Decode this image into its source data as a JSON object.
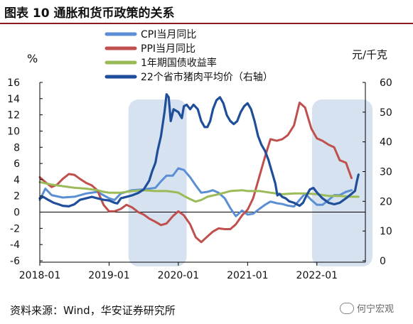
{
  "title": "图表 10  通胀和货币政策的关系",
  "source": "资料来源：Wind，华安证券研究所",
  "watermark": "何宁宏观",
  "chart_data": {
    "type": "line",
    "left_unit": "%",
    "right_unit": "元/千克",
    "left_ylim": [
      -6,
      16
    ],
    "left_ticks": [
      -6,
      -4,
      -2,
      0,
      2,
      4,
      6,
      8,
      10,
      12,
      14,
      16
    ],
    "right_ylim": [
      0,
      60
    ],
    "right_ticks": [
      0,
      10,
      20,
      30,
      40,
      50,
      60
    ],
    "xlim": [
      2018.0,
      2022.7
    ],
    "x_tick_labels": [
      "2018-01",
      "2019-01",
      "2020-01",
      "2021-01",
      "2022-01"
    ],
    "x_tick_values": [
      2018.0,
      2019.0,
      2020.0,
      2021.0,
      2022.0
    ],
    "shaded_ranges": [
      [
        2019.28,
        2020.12
      ],
      [
        2021.93,
        2022.96
      ]
    ],
    "series": [
      {
        "name": "CPI当月同比",
        "color": "#5b8fd4",
        "axis": "left",
        "points": [
          [
            2018.0,
            1.5
          ],
          [
            2018.08,
            2.9
          ],
          [
            2018.17,
            2.1
          ],
          [
            2018.33,
            1.8
          ],
          [
            2018.5,
            1.9
          ],
          [
            2018.67,
            2.3
          ],
          [
            2018.83,
            2.5
          ],
          [
            2019.0,
            1.7
          ],
          [
            2019.08,
            1.5
          ],
          [
            2019.17,
            2.3
          ],
          [
            2019.33,
            2.7
          ],
          [
            2019.5,
            2.8
          ],
          [
            2019.67,
            3.0
          ],
          [
            2019.75,
            3.8
          ],
          [
            2019.83,
            4.5
          ],
          [
            2019.92,
            4.5
          ],
          [
            2020.0,
            5.4
          ],
          [
            2020.08,
            5.2
          ],
          [
            2020.17,
            4.3
          ],
          [
            2020.25,
            3.3
          ],
          [
            2020.33,
            2.4
          ],
          [
            2020.42,
            2.5
          ],
          [
            2020.5,
            2.7
          ],
          [
            2020.58,
            2.4
          ],
          [
            2020.67,
            1.7
          ],
          [
            2020.75,
            0.5
          ],
          [
            2020.83,
            -0.5
          ],
          [
            2020.92,
            0.2
          ],
          [
            2021.0,
            -0.3
          ],
          [
            2021.08,
            -0.2
          ],
          [
            2021.17,
            0.4
          ],
          [
            2021.25,
            0.9
          ],
          [
            2021.33,
            1.3
          ],
          [
            2021.42,
            1.1
          ],
          [
            2021.5,
            1.0
          ],
          [
            2021.58,
            0.8
          ],
          [
            2021.67,
            0.7
          ],
          [
            2021.75,
            1.5
          ],
          [
            2021.83,
            2.3
          ],
          [
            2021.92,
            1.5
          ],
          [
            2022.0,
            0.9
          ],
          [
            2022.08,
            0.9
          ],
          [
            2022.17,
            1.5
          ],
          [
            2022.25,
            2.1
          ],
          [
            2022.33,
            2.1
          ],
          [
            2022.42,
            2.5
          ],
          [
            2022.5,
            2.7
          ]
        ]
      },
      {
        "name": "PPI当月同比",
        "color": "#c0504d",
        "axis": "left",
        "points": [
          [
            2018.0,
            4.3
          ],
          [
            2018.08,
            3.7
          ],
          [
            2018.17,
            3.1
          ],
          [
            2018.25,
            3.4
          ],
          [
            2018.33,
            4.1
          ],
          [
            2018.42,
            4.7
          ],
          [
            2018.5,
            4.6
          ],
          [
            2018.58,
            4.1
          ],
          [
            2018.67,
            3.6
          ],
          [
            2018.75,
            3.3
          ],
          [
            2018.83,
            2.7
          ],
          [
            2018.92,
            0.9
          ],
          [
            2019.0,
            0.1
          ],
          [
            2019.08,
            0.1
          ],
          [
            2019.17,
            0.4
          ],
          [
            2019.25,
            0.9
          ],
          [
            2019.33,
            0.6
          ],
          [
            2019.42,
            0.0
          ],
          [
            2019.5,
            -0.3
          ],
          [
            2019.58,
            -0.8
          ],
          [
            2019.67,
            -1.2
          ],
          [
            2019.75,
            -1.6
          ],
          [
            2019.83,
            -1.4
          ],
          [
            2019.92,
            -0.5
          ],
          [
            2020.0,
            0.1
          ],
          [
            2020.08,
            -0.4
          ],
          [
            2020.17,
            -1.5
          ],
          [
            2020.25,
            -3.1
          ],
          [
            2020.33,
            -3.7
          ],
          [
            2020.42,
            -3.0
          ],
          [
            2020.5,
            -2.4
          ],
          [
            2020.58,
            -2.0
          ],
          [
            2020.67,
            -2.1
          ],
          [
            2020.75,
            -2.1
          ],
          [
            2020.83,
            -1.5
          ],
          [
            2020.92,
            -0.4
          ],
          [
            2021.0,
            0.3
          ],
          [
            2021.08,
            1.7
          ],
          [
            2021.17,
            4.4
          ],
          [
            2021.25,
            6.8
          ],
          [
            2021.33,
            9.0
          ],
          [
            2021.42,
            8.8
          ],
          [
            2021.5,
            9.0
          ],
          [
            2021.58,
            9.5
          ],
          [
            2021.67,
            10.7
          ],
          [
            2021.75,
            13.5
          ],
          [
            2021.83,
            12.9
          ],
          [
            2021.92,
            10.3
          ],
          [
            2022.0,
            9.1
          ],
          [
            2022.08,
            8.8
          ],
          [
            2022.17,
            8.3
          ],
          [
            2022.25,
            8.0
          ],
          [
            2022.33,
            6.4
          ],
          [
            2022.42,
            6.1
          ],
          [
            2022.5,
            4.2
          ]
        ]
      },
      {
        "name": "1年期国债收益率",
        "color": "#9bbb59",
        "axis": "left",
        "points": [
          [
            2018.0,
            3.7
          ],
          [
            2018.17,
            3.4
          ],
          [
            2018.33,
            3.2
          ],
          [
            2018.5,
            3.0
          ],
          [
            2018.67,
            2.9
          ],
          [
            2018.83,
            2.7
          ],
          [
            2018.92,
            2.5
          ],
          [
            2019.0,
            2.4
          ],
          [
            2019.17,
            2.4
          ],
          [
            2019.33,
            2.6
          ],
          [
            2019.5,
            2.7
          ],
          [
            2019.67,
            2.6
          ],
          [
            2019.83,
            2.6
          ],
          [
            2019.92,
            2.5
          ],
          [
            2020.0,
            2.4
          ],
          [
            2020.08,
            2.0
          ],
          [
            2020.17,
            1.6
          ],
          [
            2020.25,
            1.3
          ],
          [
            2020.33,
            1.5
          ],
          [
            2020.42,
            1.9
          ],
          [
            2020.58,
            2.2
          ],
          [
            2020.75,
            2.6
          ],
          [
            2020.92,
            2.7
          ],
          [
            2021.0,
            2.6
          ],
          [
            2021.17,
            2.6
          ],
          [
            2021.33,
            2.4
          ],
          [
            2021.5,
            2.2
          ],
          [
            2021.67,
            2.3
          ],
          [
            2021.83,
            2.3
          ],
          [
            2022.0,
            2.2
          ],
          [
            2022.17,
            2.0
          ],
          [
            2022.33,
            2.0
          ],
          [
            2022.5,
            1.9
          ],
          [
            2022.6,
            1.9
          ]
        ]
      },
      {
        "name": "22个省市猪肉平均价（右轴）",
        "color": "#1f4e9a",
        "axis": "right",
        "points": [
          [
            2018.0,
            21
          ],
          [
            2018.05,
            21.5
          ],
          [
            2018.12,
            20.5
          ],
          [
            2018.2,
            19.5
          ],
          [
            2018.27,
            19
          ],
          [
            2018.33,
            18.5
          ],
          [
            2018.42,
            18.3
          ],
          [
            2018.5,
            19
          ],
          [
            2018.58,
            20.5
          ],
          [
            2018.67,
            21
          ],
          [
            2018.75,
            21.5
          ],
          [
            2018.83,
            21
          ],
          [
            2018.92,
            20.5
          ],
          [
            2019.0,
            20.3
          ],
          [
            2019.08,
            19.5
          ],
          [
            2019.12,
            19.3
          ],
          [
            2019.17,
            21
          ],
          [
            2019.25,
            21.5
          ],
          [
            2019.33,
            22
          ],
          [
            2019.42,
            22.8
          ],
          [
            2019.5,
            24
          ],
          [
            2019.58,
            27
          ],
          [
            2019.62,
            30
          ],
          [
            2019.67,
            33
          ],
          [
            2019.7,
            37
          ],
          [
            2019.75,
            42
          ],
          [
            2019.8,
            50
          ],
          [
            2019.83,
            56
          ],
          [
            2019.86,
            55
          ],
          [
            2019.89,
            47
          ],
          [
            2019.93,
            51
          ],
          [
            2020.0,
            50
          ],
          [
            2020.05,
            48
          ],
          [
            2020.08,
            52
          ],
          [
            2020.12,
            52.5
          ],
          [
            2020.17,
            51
          ],
          [
            2020.22,
            52.5
          ],
          [
            2020.28,
            51
          ],
          [
            2020.33,
            47
          ],
          [
            2020.38,
            45
          ],
          [
            2020.42,
            45
          ],
          [
            2020.46,
            47
          ],
          [
            2020.5,
            51
          ],
          [
            2020.55,
            54
          ],
          [
            2020.6,
            55
          ],
          [
            2020.65,
            53
          ],
          [
            2020.7,
            49
          ],
          [
            2020.75,
            47
          ],
          [
            2020.8,
            46
          ],
          [
            2020.85,
            47
          ],
          [
            2020.9,
            50
          ],
          [
            2020.95,
            52
          ],
          [
            2021.0,
            53
          ],
          [
            2021.05,
            51
          ],
          [
            2021.1,
            47
          ],
          [
            2021.15,
            42
          ],
          [
            2021.2,
            39
          ],
          [
            2021.25,
            37
          ],
          [
            2021.3,
            34
          ],
          [
            2021.35,
            30
          ],
          [
            2021.4,
            26
          ],
          [
            2021.43,
            22
          ],
          [
            2021.46,
            22.5
          ],
          [
            2021.5,
            21.5
          ],
          [
            2021.55,
            21
          ],
          [
            2021.6,
            20
          ],
          [
            2021.67,
            19.5
          ],
          [
            2021.75,
            18.5
          ],
          [
            2021.8,
            19.5
          ],
          [
            2021.85,
            22
          ],
          [
            2021.9,
            24
          ],
          [
            2021.95,
            24.5
          ],
          [
            2022.0,
            23
          ],
          [
            2022.08,
            21
          ],
          [
            2022.17,
            19.5
          ],
          [
            2022.25,
            19
          ],
          [
            2022.33,
            19.5
          ],
          [
            2022.42,
            21
          ],
          [
            2022.5,
            22.5
          ],
          [
            2022.55,
            23.5
          ],
          [
            2022.58,
            27
          ],
          [
            2022.6,
            29
          ]
        ]
      }
    ]
  }
}
